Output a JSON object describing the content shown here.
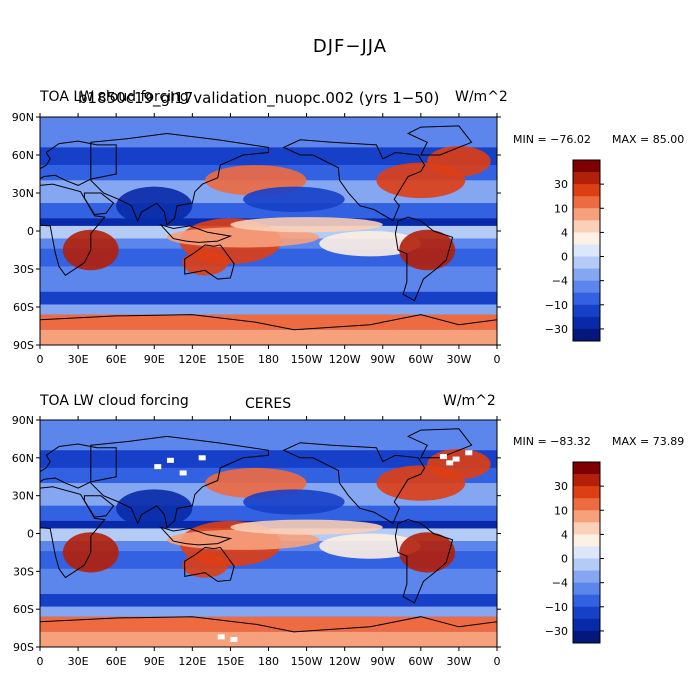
{
  "figure": {
    "title": "DJF−JJA"
  },
  "colorbar_levels": [
    "30",
    "10",
    "4",
    "0",
    "−4",
    "−10",
    "−30"
  ],
  "colors": {
    "ocean_base": "#4a6fe6",
    "palette": [
      "#7f0000",
      "#b3200a",
      "#de3e14",
      "#ee6a40",
      "#f6a07c",
      "#fbd0b8",
      "#fdf0e4",
      "#dce8fa",
      "#b4cbf6",
      "#85a7f1",
      "#5c86ec",
      "#3261e2",
      "#1740c9",
      "#082aa8",
      "#03187a"
    ]
  },
  "panels": [
    {
      "id": "model",
      "title_left": "TOA LW cloud forcing",
      "title_center": "b1850c19_gl17validation_nuopc.002 (yrs 1−50)",
      "units": "W/m^2",
      "min_label": "MIN = −76.02",
      "max_label": "MAX =   85.00"
    },
    {
      "id": "obs",
      "title_left": "TOA LW cloud forcing",
      "title_center": "CERES",
      "units": "W/m^2",
      "min_label": "MIN = −83.32",
      "max_label": "MAX =   73.89"
    }
  ],
  "axes": {
    "lat_ticks": [
      "90N",
      "60N",
      "30N",
      "0",
      "30S",
      "60S",
      "90S"
    ],
    "lon_ticks": [
      "0",
      "30E",
      "60E",
      "90E",
      "120E",
      "150E",
      "180",
      "150W",
      "120W",
      "90W",
      "60W",
      "30W",
      "0"
    ]
  }
}
